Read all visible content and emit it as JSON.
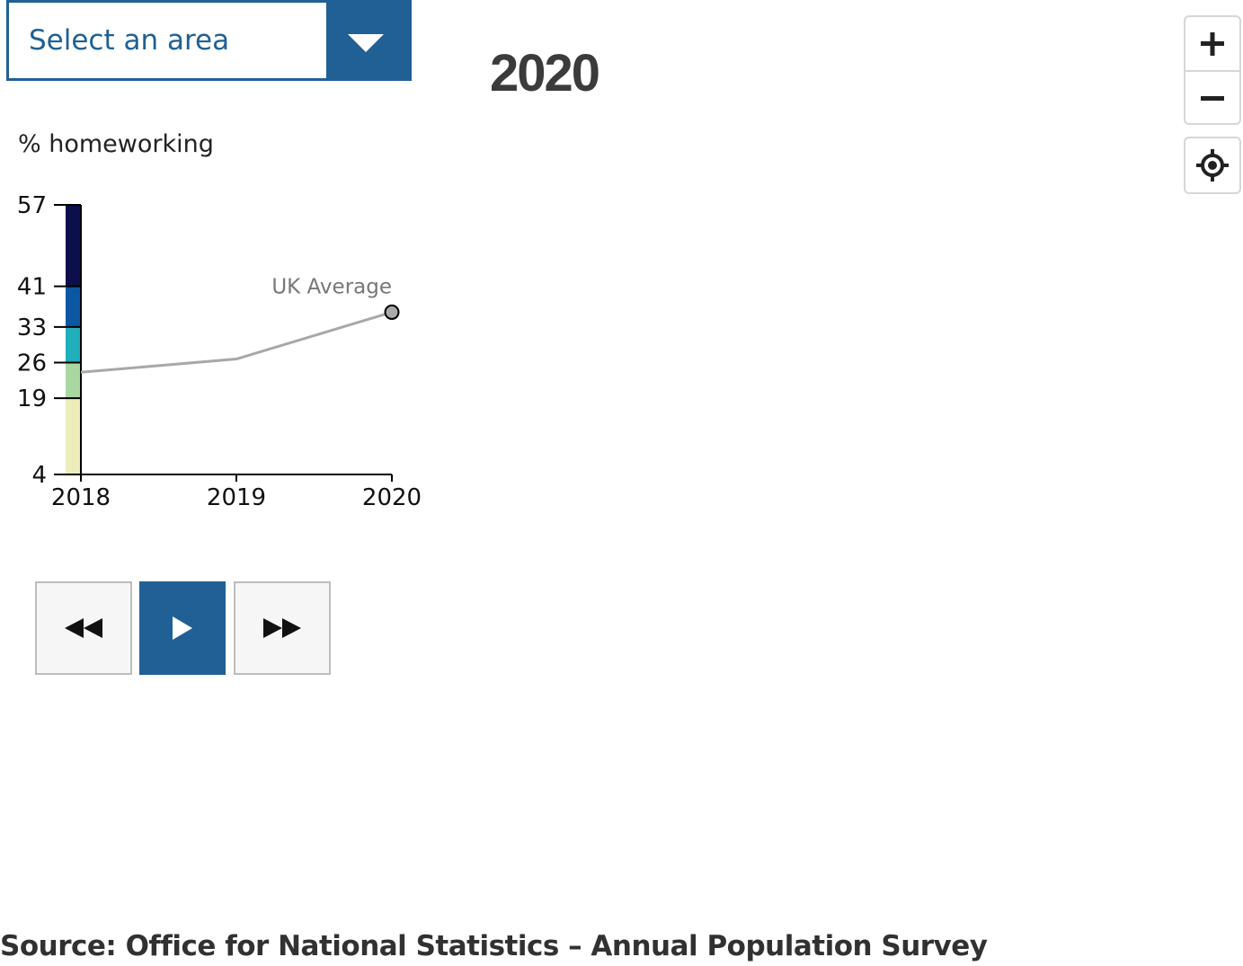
{
  "area_select": {
    "label": "Select an area"
  },
  "year_title": "2020",
  "map_controls": {
    "zoom_in_icon": "plus",
    "zoom_out_icon": "minus",
    "locate_icon": "crosshair-target"
  },
  "legend": {
    "title": "% homeworking"
  },
  "colors": {
    "accent": "#206095",
    "line": "#a8a8a8",
    "annotation": "#777777",
    "scale": [
      "#ecedbb",
      "#a8d89f",
      "#20aebb",
      "#0b57a4",
      "#0c0f4c"
    ]
  },
  "chart_data": {
    "type": "line",
    "ylabel": "% homeworking",
    "y_ticks": [
      4,
      19,
      26,
      33,
      41,
      57
    ],
    "ylim": [
      4,
      57
    ],
    "x_ticks": [
      "2018",
      "2019",
      "2020"
    ],
    "color_scale_breaks": [
      4,
      19,
      26,
      33,
      41,
      57
    ],
    "series": [
      {
        "name": "UK Average",
        "x": [
          "2018",
          "2019",
          "2020"
        ],
        "values": [
          24.1,
          26.7,
          35.9
        ]
      }
    ],
    "annotation": "UK Average",
    "grid": false
  },
  "playback": {
    "back_icon": "rewind",
    "play_icon": "play",
    "forward_icon": "fast-forward"
  },
  "source": "Source: Office for National Statistics – Annual Population Survey"
}
